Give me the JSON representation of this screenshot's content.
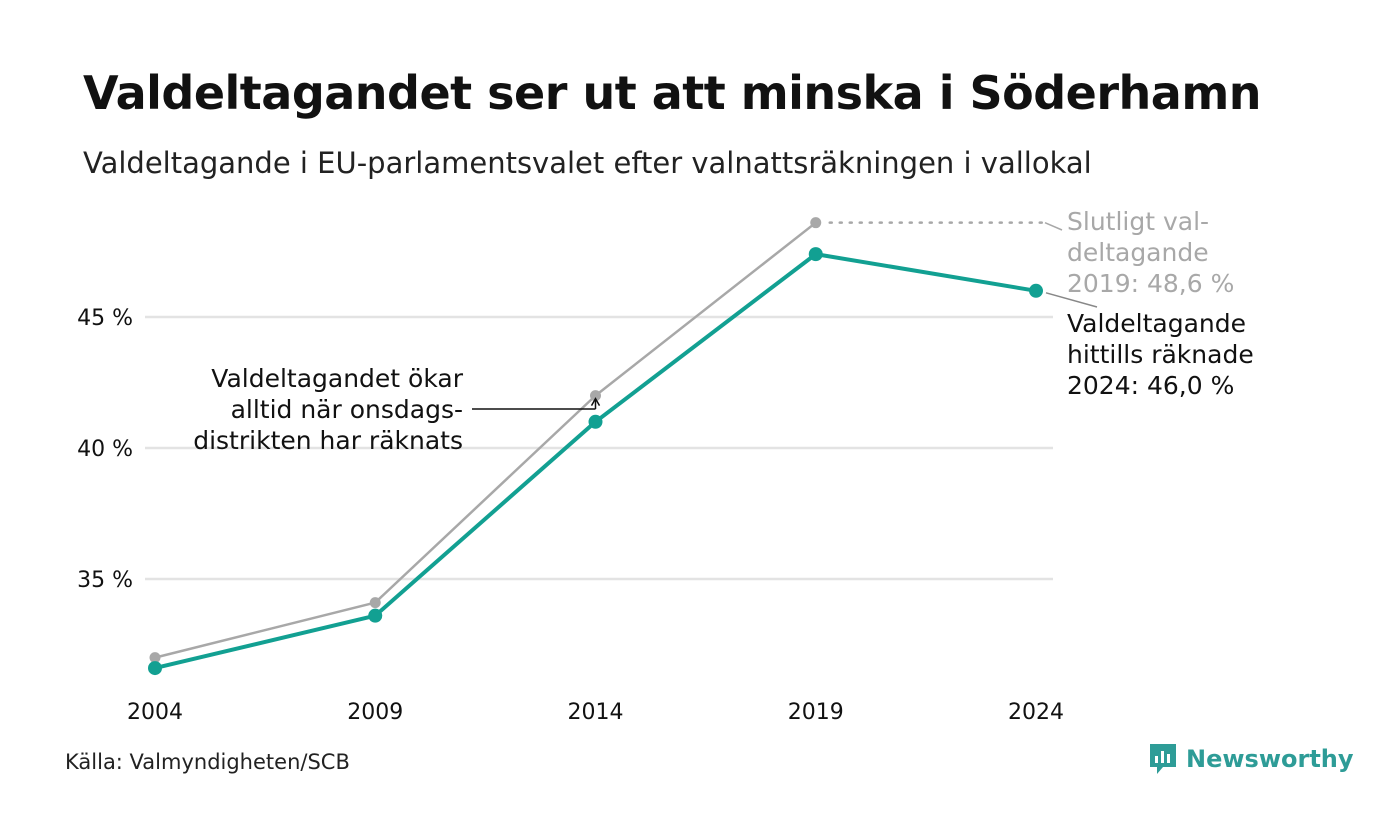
{
  "title": "Valdeltagandet ser ut att minska i Söderhamn",
  "subtitle": "Valdeltagande i EU-parlamentsvalet efter valnattsräkningen i vallokal",
  "source": "Källa: Valmyndigheten/SCB",
  "brand": "Newsworthy",
  "colors": {
    "final": "#a8a8a8",
    "counted": "#12a092",
    "grid": "#e3e3e3",
    "text": "#111111"
  },
  "chart_data": {
    "type": "line",
    "categories": [
      "2004",
      "2009",
      "2014",
      "2019",
      "2024"
    ],
    "series": [
      {
        "key": "final",
        "values": [
          32.0,
          34.1,
          42.0,
          48.6,
          null
        ]
      },
      {
        "key": "counted",
        "values": [
          31.6,
          33.6,
          41.0,
          47.4,
          46.0
        ]
      }
    ],
    "y_ticks": [
      35,
      40,
      45
    ],
    "y_tick_labels": [
      "35 %",
      "40 %",
      "45 %"
    ],
    "ylim": [
      30,
      50
    ],
    "grid": true,
    "annotations": {
      "final_2019": [
        "Slutligt val-",
        "deltagande",
        "2019: 48,6 %"
      ],
      "counted_2024": [
        "Valdeltagande",
        "hittills räknade",
        "2024: 46,0 %"
      ],
      "wednesday_note": [
        "Valdeltagandet ökar",
        "alltid när onsdags-",
        "distrikten har räknats"
      ]
    }
  }
}
